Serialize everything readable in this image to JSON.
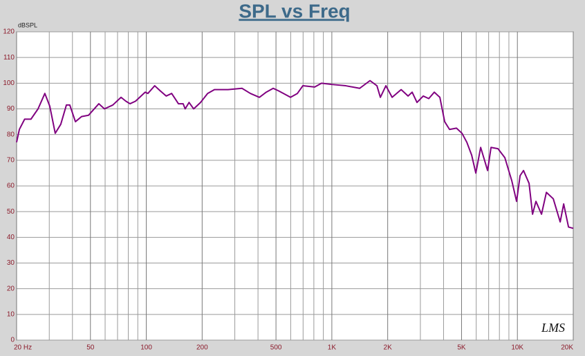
{
  "chart_data": {
    "type": "line",
    "title": "SPL vs Freq",
    "y_label": "dBSPL",
    "watermark": "LMS",
    "log_x": true,
    "grid": true,
    "xlim": [
      20,
      20000
    ],
    "ylim": [
      0,
      120
    ],
    "yticks": [
      0,
      10,
      20,
      30,
      40,
      50,
      60,
      70,
      80,
      90,
      100,
      110,
      120
    ],
    "xticks": [
      {
        "value": 20,
        "label": "20  Hz"
      },
      50,
      100,
      200,
      500,
      {
        "value": 1000,
        "label": "1K"
      },
      {
        "value": 2000,
        "label": "2K"
      },
      {
        "value": 5000,
        "label": "5K"
      },
      {
        "value": 10000,
        "label": "10K"
      },
      {
        "value": 20000,
        "label": "20K"
      }
    ],
    "xminor_ticks": [
      30,
      40,
      60,
      70,
      80,
      90,
      300,
      400,
      600,
      700,
      800,
      900,
      3000,
      4000,
      6000,
      7000,
      8000,
      9000
    ],
    "x": [
      20,
      20.7,
      22.1,
      23.9,
      26.1,
      28.4,
      30.2,
      32.3,
      34.6,
      37.1,
      38.7,
      41.5,
      44.8,
      48.8,
      55.5,
      59.5,
      66,
      73.1,
      77.6,
      81.7,
      87.5,
      98.6,
      102,
      111,
      119,
      128,
      137,
      149,
      158,
      162,
      170,
      180,
      196,
      214,
      233,
      276,
      328,
      364,
      407,
      443,
      483,
      517,
      549,
      599,
      652,
      698,
      808,
      880,
      1001,
      1189,
      1412,
      1606,
      1750,
      1826,
      1956,
      2113,
      2363,
      2575,
      2709,
      2877,
      3109,
      3330,
      3567,
      3821,
      4057,
      4309,
      4694,
      5029,
      5340,
      5670,
      5970,
      6340,
      6910,
      7210,
      7860,
      8560,
      9330,
      9900,
      10340,
      10790,
      11560,
      12070,
      12590,
      13490,
      14330,
      15610,
      17010,
      17760,
      18860,
      20000
    ],
    "series": [
      {
        "name": "SPL",
        "color": "#800080",
        "values": [
          77,
          82,
          86,
          86,
          90,
          96,
          91,
          80.5,
          84,
          91.5,
          91.5,
          85,
          87,
          87.5,
          92,
          90,
          91.5,
          94.5,
          93,
          92,
          93,
          96.5,
          96,
          99,
          97,
          95,
          96,
          92,
          92,
          90,
          92.5,
          90,
          92.5,
          96,
          97.5,
          97.5,
          98,
          96,
          94.5,
          96.5,
          98,
          97,
          96,
          94.5,
          96,
          99,
          98.5,
          100,
          99.5,
          99,
          98,
          101,
          99,
          94.5,
          99,
          94.5,
          97.5,
          95,
          96.5,
          92.5,
          95,
          94,
          96.5,
          94.5,
          85,
          82,
          82.5,
          80.5,
          77,
          72,
          65,
          75,
          66,
          75,
          74.5,
          71,
          62,
          54,
          64,
          66,
          61,
          49,
          54,
          49,
          57.5,
          55,
          46,
          53,
          44,
          43.5
        ]
      }
    ]
  }
}
